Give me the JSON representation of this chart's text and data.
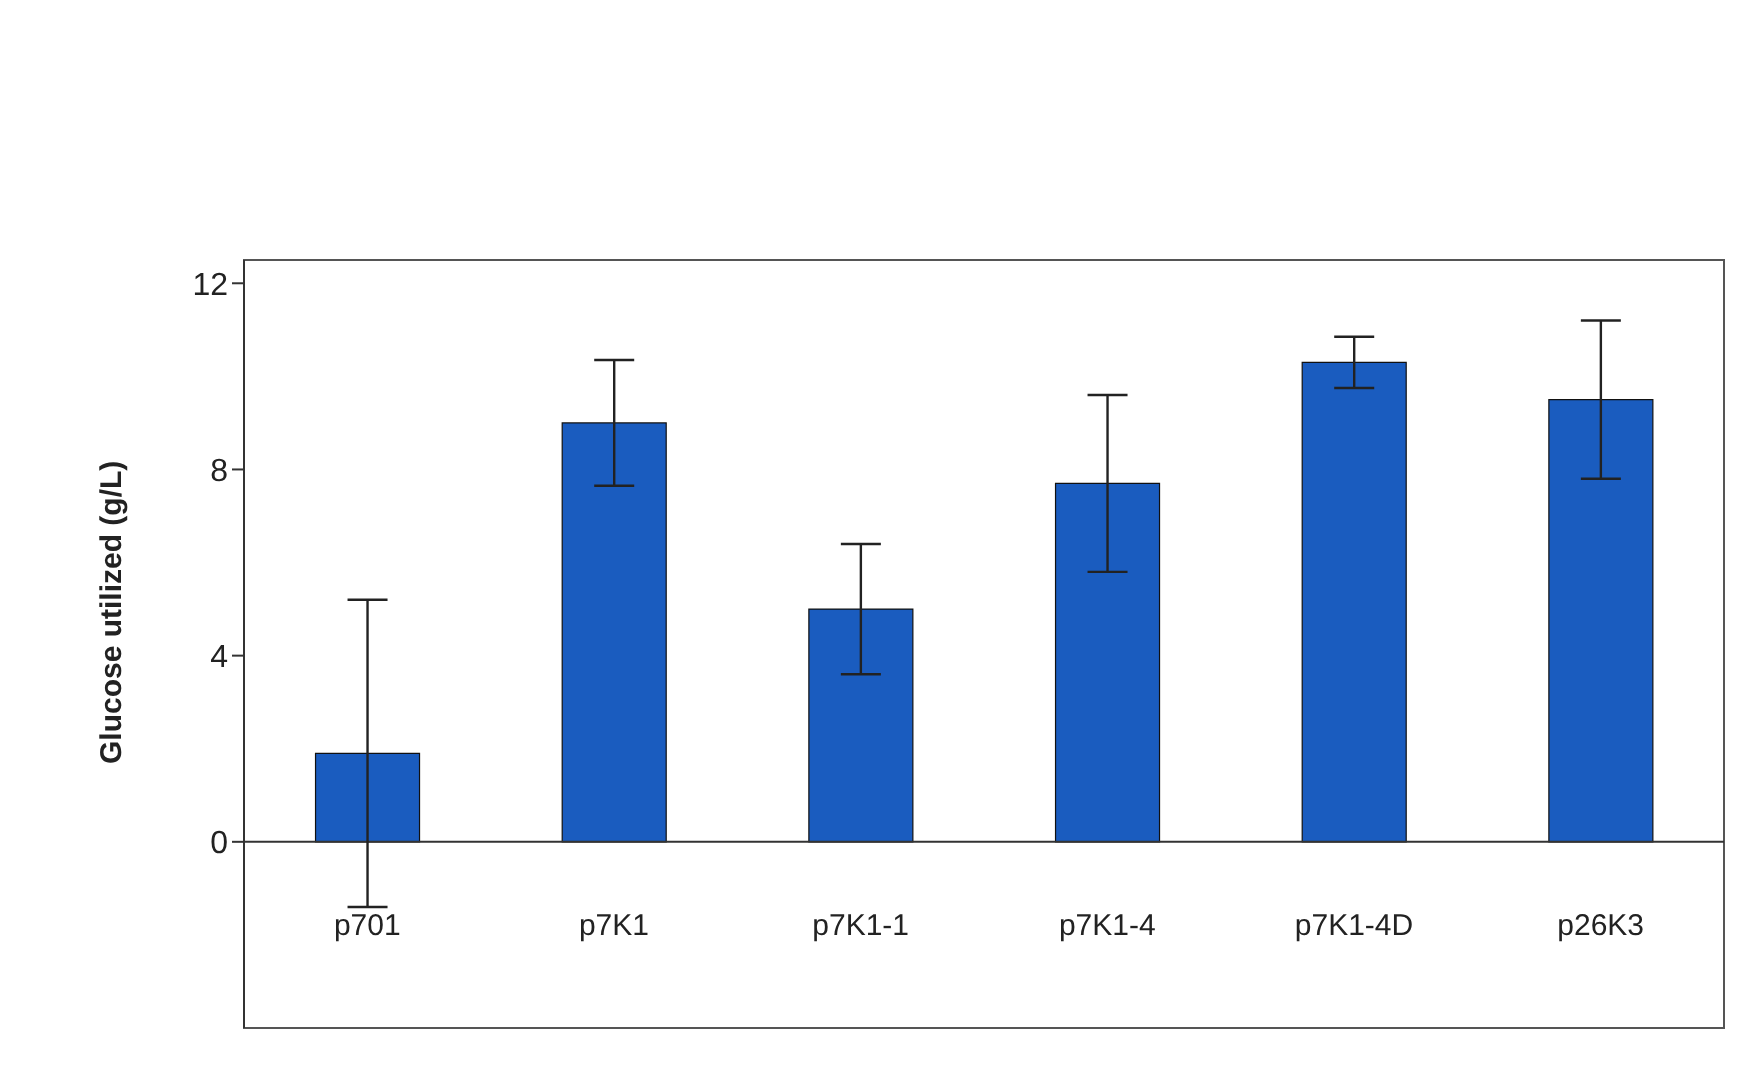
{
  "chart_data": {
    "type": "bar",
    "ylabel": "Glucose utilized (g/L)",
    "categories": [
      "p701",
      "p7K1",
      "p7K1-1",
      "p7K1-4",
      "p7K1-4D",
      "p26K3"
    ],
    "values": [
      1.9,
      9.0,
      5.0,
      7.7,
      10.3,
      9.5
    ],
    "errors": [
      3.3,
      1.35,
      1.4,
      1.9,
      0.55,
      1.7
    ],
    "color": "#1a5cbf",
    "ylim": [
      -4,
      12.5
    ],
    "yticks": [
      0,
      4,
      8,
      12
    ],
    "grid": false
  }
}
